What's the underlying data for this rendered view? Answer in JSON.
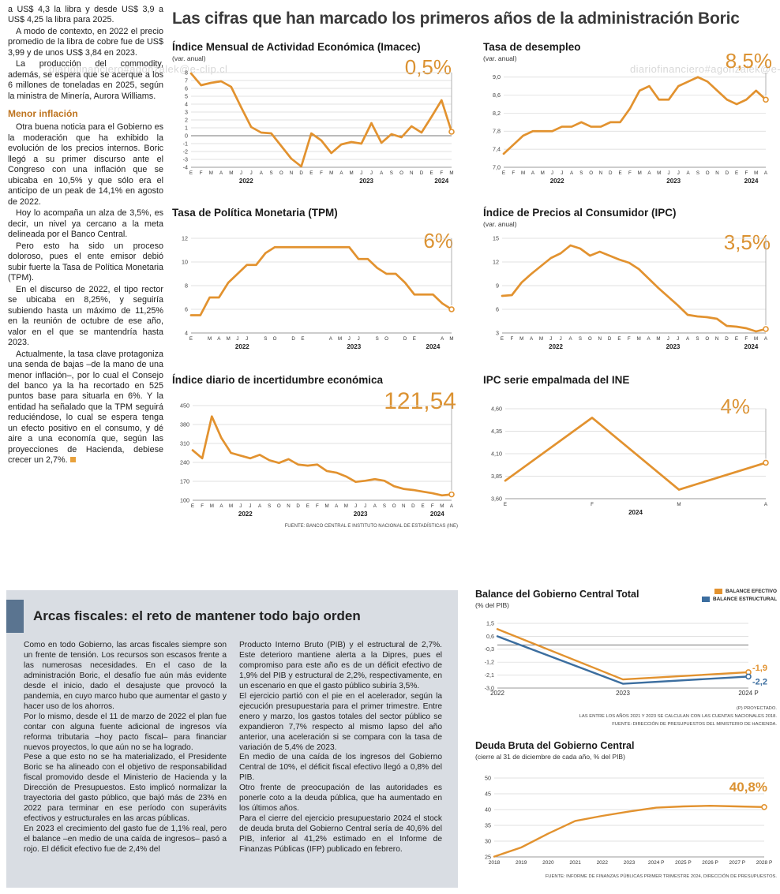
{
  "watermark": "diariofinanciero#agonzalek@e-clip.cl",
  "headline": "Las cifras que han marcado los primeros años de la administración Boric",
  "left_column": {
    "paragraphs": [
      "a US$ 4,3 la libra y desde US$ 3,9 a US$ 4,25 la libra para 2025.",
      "A modo de contexto, en 2022 el precio promedio de la libra de cobre fue de US$ 3,99 y de unos US$ 3,84 en 2023.",
      "La producción del commodity, además, se espera que se acerque a los 6 millones de toneladas en 2025, según la ministra de Minería, Aurora Williams."
    ],
    "heading": "Menor inflación",
    "paragraphs2": [
      "Otra buena noticia para el Gobierno es la moderación que ha exhibido la evolución de los precios internos. Boric llegó a su primer discurso ante el Congreso con una inflación que se ubicaba en 10,5% y que sólo era el anticipo de un peak de 14,1% en agosto de 2022.",
      "Hoy lo acompaña un alza de 3,5%, es decir, un nivel ya cercano a la meta delineada por el Banco Central.",
      "Pero esto ha sido un proceso doloroso, pues el ente emisor debió subir fuerte la Tasa de Política Monetaria (TPM).",
      "En el discurso de 2022, el tipo rector se ubicaba en 8,25%, y seguiría subiendo hasta un máximo de 11,25% en la reunión de octubre de ese año, valor en el que se mantendría hasta 2023.",
      "Actualmente, la tasa clave protagoniza una senda de bajas –de la mano de una menor inflación–, por lo cual el Consejo del banco ya la ha recortado en 525 puntos base para situarla en 6%. Y la entidad ha señalado que la TPM seguirá reduciéndose, lo cual se espera tenga un efecto positivo en el consumo, y dé aire a una economía que, según las proyecciones de Hacienda, debiese crecer un 2,7%."
    ]
  },
  "grid_source": "FUENTE: BANCO CENTRAL E INSTITUTO NACIONAL DE ESTADÍSTICAS (INE)",
  "fiscal": {
    "heading": "Arcas fiscales: el reto de mantener todo bajo orden",
    "col1": [
      "Como en todo Gobierno, las arcas fiscales siempre son un frente de tensión. Los recursos son escasos frente a las numerosas necesidades. En el caso de la administración Boric, el desafío fue aún más evidente desde el inicio, dado el desajuste que provocó la pandemia, en cuyo marco hubo que aumentar el gasto y hacer uso de los ahorros.",
      "Por lo mismo, desde el 11 de marzo de 2022 el plan fue contar con alguna fuente adicional de ingresos vía reforma tributaria –hoy pacto fiscal– para financiar nuevos proyectos, lo que aún no se ha logrado.",
      "Pese a que esto no se ha materializado, el Presidente Boric se ha alineado con el objetivo de responsabilidad fiscal promovido desde el Ministerio de Hacienda y la Dirección de Presupuestos. Esto implicó normalizar la trayectoria del gasto público, que bajó más de 23% en 2022 para terminar en ese período con superávits efectivos y estructurales en las arcas públicas.",
      "En 2023 el crecimiento del gasto fue de 1,1% real, pero el balance –en medio de una caída de ingresos– pasó a rojo. El déficit efectivo fue de 2,4% del"
    ],
    "col2": [
      "Producto Interno Bruto (PIB) y el estructural de 2,7%. Este deterioro mantiene alerta a la Dipres, pues el compromiso para este año es de un déficit efectivo de 1,9% del PIB y estructural de 2,2%, respectivamente, en un escenario en que el gasto público subiría 3,5%.",
      "El ejercicio partió con el pie en el acelerador, según la ejecución presupuestaria para el primer trimestre. Entre enero y marzo, los gastos totales del sector público se expandieron 7,7% respecto al mismo lapso del año anterior, una aceleración si se compara con la tasa de variación de 5,4% de 2023.",
      "En medio de una caída de los ingresos del Gobierno Central de 10%, el déficit fiscal efectivo llegó a 0,8% del PIB.",
      "Otro frente de preocupación de las autoridades es ponerle coto a la deuda pública, que ha aumentado en los últimos años.",
      "Para el cierre del ejercicio presupuestario 2024 el stock de deuda bruta del Gobierno Central sería de 40,6% del PIB, inferior al 41,2% estimado en el Informe de Finanzas Públicas (IFP) publicado en febrero."
    ]
  },
  "chart_data": [
    {
      "id": "imacec",
      "type": "line",
      "title": "Índice Mensual de Actividad Económica (Imacec)",
      "subtitle": "(var. anual)",
      "highlight": "0,5%",
      "ylim": [
        -4,
        8
      ],
      "yticks": [
        8,
        7,
        6,
        5,
        4,
        3,
        2,
        1,
        0,
        -1,
        -2,
        -3,
        -4
      ],
      "x_labels": [
        "E",
        "F",
        "M",
        "A",
        "M",
        "J",
        "J",
        "A",
        "S",
        "O",
        "N",
        "D",
        "E",
        "F",
        "M",
        "A",
        "M",
        "J",
        "J",
        "A",
        "S",
        "O",
        "N",
        "D",
        "E",
        "F",
        "M"
      ],
      "years": [
        {
          "label": "2022",
          "from": 0,
          "to": 11
        },
        {
          "label": "2023",
          "from": 12,
          "to": 23
        },
        {
          "label": "2024",
          "from": 24,
          "to": 26
        }
      ],
      "zero_line": true,
      "drop_line": true,
      "end_marker": true,
      "series": [
        {
          "name": "Imacec var. anual",
          "color": "#E2922F",
          "values": [
            7.9,
            6.4,
            6.7,
            6.9,
            6.2,
            3.6,
            1.1,
            0.4,
            0.3,
            -1.3,
            -2.9,
            -3.9,
            0.3,
            -0.6,
            -2.2,
            -1.1,
            -0.8,
            -1.0,
            1.6,
            -0.9,
            0.2,
            -0.2,
            1.2,
            0.4,
            2.4,
            4.5,
            0.5
          ]
        }
      ]
    },
    {
      "id": "desempleo",
      "type": "line",
      "title": "Tasa de desempleo",
      "subtitle": "(var. anual)",
      "highlight": "8,5%",
      "ylim": [
        7.0,
        9.1
      ],
      "yticks": [
        9.0,
        8.6,
        8.2,
        7.8,
        7.4,
        7.0
      ],
      "ytick_labels": [
        "9,0",
        "8,6",
        "8,2",
        "7,8",
        "7,4",
        "7,0"
      ],
      "x_labels": [
        "E",
        "F",
        "M",
        "A",
        "M",
        "J",
        "J",
        "A",
        "S",
        "O",
        "N",
        "D",
        "E",
        "F",
        "M",
        "A",
        "M",
        "J",
        "J",
        "A",
        "S",
        "O",
        "N",
        "D",
        "E",
        "F",
        "M",
        "A"
      ],
      "years": [
        {
          "label": "2022",
          "from": 0,
          "to": 11
        },
        {
          "label": "2023",
          "from": 12,
          "to": 23
        },
        {
          "label": "2024",
          "from": 24,
          "to": 27
        }
      ],
      "drop_line": true,
      "end_marker": true,
      "series": [
        {
          "name": "Tasa de desempleo",
          "color": "#E2922F",
          "values": [
            7.3,
            7.5,
            7.7,
            7.8,
            7.8,
            7.8,
            7.9,
            7.9,
            8.0,
            7.9,
            7.9,
            8.0,
            8.0,
            8.3,
            8.7,
            8.8,
            8.5,
            8.5,
            8.8,
            8.9,
            9.0,
            8.9,
            8.7,
            8.5,
            8.4,
            8.5,
            8.7,
            8.5
          ]
        }
      ]
    },
    {
      "id": "tpm",
      "type": "line",
      "title": "Tasa de Política Monetaria (TPM)",
      "highlight": "6%",
      "ylim": [
        4,
        12
      ],
      "yticks": [
        12,
        10,
        8,
        6,
        4
      ],
      "x_labels": [
        "E",
        "",
        "M",
        "A",
        "M",
        "J",
        "J",
        "",
        "S",
        "O",
        "",
        "D",
        "E",
        "",
        "",
        "A",
        "M",
        "J",
        "J",
        "",
        "S",
        "O",
        "",
        "D",
        "E",
        "",
        "",
        "A",
        "M"
      ],
      "years": [
        {
          "label": "2022",
          "from": 0,
          "to": 11
        },
        {
          "label": "2023",
          "from": 12,
          "to": 23
        },
        {
          "label": "2024",
          "from": 24,
          "to": 28
        }
      ],
      "drop_line": true,
      "end_marker": true,
      "series": [
        {
          "name": "TPM",
          "color": "#E2922F",
          "values": [
            5.5,
            5.5,
            7.0,
            7.0,
            8.25,
            9.0,
            9.75,
            9.75,
            10.75,
            11.25,
            11.25,
            11.25,
            11.25,
            11.25,
            11.25,
            11.25,
            11.25,
            11.25,
            10.25,
            10.25,
            9.5,
            9.0,
            9.0,
            8.25,
            7.25,
            7.25,
            7.25,
            6.5,
            6.0
          ]
        }
      ]
    },
    {
      "id": "ipc",
      "type": "line",
      "title": "Índice de Precios al Consumidor (IPC)",
      "subtitle": "(var. anual)",
      "highlight": "3,5%",
      "ylim": [
        3,
        15
      ],
      "yticks": [
        15,
        12,
        9,
        6,
        3
      ],
      "x_labels": [
        "E",
        "F",
        "M",
        "A",
        "M",
        "J",
        "J",
        "A",
        "S",
        "O",
        "N",
        "D",
        "E",
        "F",
        "M",
        "A",
        "M",
        "J",
        "J",
        "A",
        "S",
        "O",
        "N",
        "D",
        "E",
        "F",
        "M",
        "A"
      ],
      "years": [
        {
          "label": "2022",
          "from": 0,
          "to": 11
        },
        {
          "label": "2023",
          "from": 12,
          "to": 23
        },
        {
          "label": "2024",
          "from": 24,
          "to": 27
        }
      ],
      "drop_line": true,
      "end_marker": true,
      "series": [
        {
          "name": "IPC var. anual",
          "color": "#E2922F",
          "values": [
            7.7,
            7.8,
            9.4,
            10.5,
            11.5,
            12.5,
            13.1,
            14.1,
            13.7,
            12.8,
            13.3,
            12.8,
            12.3,
            11.9,
            11.1,
            9.9,
            8.7,
            7.6,
            6.5,
            5.3,
            5.1,
            5.0,
            4.8,
            3.9,
            3.8,
            3.6,
            3.2,
            3.5
          ]
        }
      ]
    },
    {
      "id": "incertidumbre",
      "type": "line",
      "title": "Índice diario de incertidumbre económica",
      "highlight": "121,54",
      "ylim": [
        100,
        450
      ],
      "yticks": [
        450,
        380,
        310,
        240,
        170,
        100
      ],
      "x_labels": [
        "E",
        "F",
        "M",
        "A",
        "M",
        "J",
        "J",
        "A",
        "S",
        "O",
        "N",
        "D",
        "E",
        "F",
        "M",
        "A",
        "M",
        "J",
        "J",
        "A",
        "S",
        "O",
        "N",
        "D",
        "E",
        "F",
        "M",
        "A"
      ],
      "years": [
        {
          "label": "2022",
          "from": 0,
          "to": 11
        },
        {
          "label": "2023",
          "from": 12,
          "to": 23
        },
        {
          "label": "2024",
          "from": 24,
          "to": 27
        }
      ],
      "drop_line": true,
      "end_marker": true,
      "series": [
        {
          "name": "Incertidumbre económica",
          "color": "#E2922F",
          "values": [
            285,
            255,
            410,
            330,
            275,
            265,
            255,
            268,
            248,
            238,
            252,
            232,
            228,
            232,
            208,
            202,
            188,
            168,
            172,
            178,
            172,
            152,
            142,
            138,
            132,
            126,
            118,
            121.54
          ]
        }
      ]
    },
    {
      "id": "ipc-empalmada",
      "type": "line",
      "title": "IPC serie empalmada del INE",
      "highlight": "4%",
      "ylim": [
        3.6,
        4.6
      ],
      "yticks": [
        4.6,
        4.35,
        4.1,
        3.85,
        3.6
      ],
      "ytick_labels": [
        "4,60",
        "4,35",
        "4,10",
        "3,85",
        "3,60"
      ],
      "x_labels": [
        "E",
        "F",
        "M",
        "A"
      ],
      "years": [
        {
          "label": "2024",
          "from": 0,
          "to": 3
        }
      ],
      "drop_line": true,
      "end_marker": true,
      "series": [
        {
          "name": "IPC serie empalmada",
          "color": "#E2922F",
          "values": [
            3.8,
            4.5,
            3.7,
            4.0
          ]
        }
      ]
    },
    {
      "id": "balance",
      "type": "line",
      "title": "Balance del Gobierno Central Total",
      "subtitle": "(% del PIB)",
      "ylim": [
        -3.0,
        1.5
      ],
      "yticks": [
        1.5,
        0.6,
        -0.3,
        -1.2,
        -2.1,
        -3.0
      ],
      "ytick_labels": [
        "1,5",
        "0,6",
        "-0,3",
        "-1,2",
        "-2,1",
        "-3,0"
      ],
      "x_labels": [
        "2022",
        "2023",
        "2024 P"
      ],
      "x_label_size": 8,
      "zero_line": true,
      "end_marker": true,
      "stroke": 2.4,
      "series": [
        {
          "name": "BALANCE EFECTIVO",
          "color": "#E2922F",
          "values": [
            1.1,
            -2.4,
            -1.9
          ],
          "end_label": {
            "text": "-1,9",
            "dy": -2
          }
        },
        {
          "name": "BALANCE ESTRUCTURAL",
          "color": "#3C6E9F",
          "values": [
            0.6,
            -2.7,
            -2.2
          ],
          "end_label": {
            "text": "-2,2",
            "dy": 10
          }
        }
      ],
      "footnotes": [
        "(P) PROYECTADO.",
        "LAS ENTRE LOS AÑOS 2021 Y 2023 SE CALCULAN CON LAS CUENTAS NACIONALES 2018.",
        "FUENTE: DIRECCIÓN DE PRESUPUESTOS DEL MINISTERIO DE HACIENDA."
      ]
    },
    {
      "id": "deuda",
      "type": "line",
      "title": "Deuda Bruta del Gobierno Central",
      "subtitle": "(cierre al 31 de diciembre de cada año, % del PIB)",
      "highlight": "40,8%",
      "ylim": [
        25,
        50
      ],
      "yticks": [
        50,
        45,
        40,
        35,
        30,
        25
      ],
      "x_labels": [
        "2018",
        "2019",
        "2020",
        "2021",
        "2022",
        "2023",
        "2024 P",
        "2025 P",
        "2026 P",
        "2027 P",
        "2028 P"
      ],
      "x_label_size": 6.5,
      "end_marker": true,
      "stroke": 2.4,
      "series": [
        {
          "name": "Deuda bruta",
          "color": "#E2922F",
          "values": [
            25.1,
            28.0,
            32.4,
            36.4,
            38.0,
            39.4,
            40.6,
            41.0,
            41.2,
            41.0,
            40.8
          ]
        }
      ],
      "source": "FUENTE: INFORME DE FINANZAS PÚBLICAS PRIMER TRIMESTRE 2024, DIRECCIÓN DE PRESUPUESTOS."
    }
  ]
}
